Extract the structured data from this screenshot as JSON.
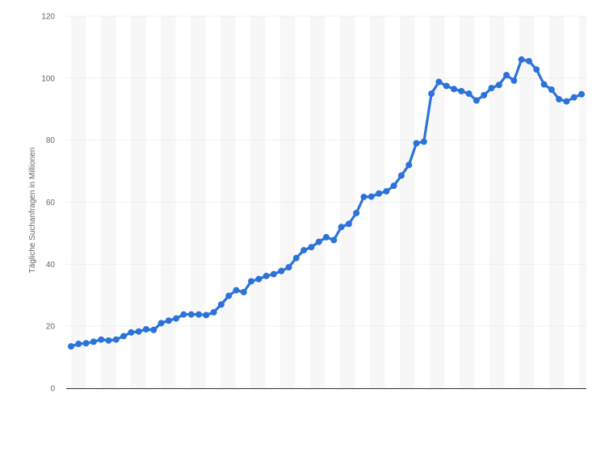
{
  "chart_data": {
    "type": "line",
    "title": "",
    "xlabel": "",
    "ylabel": "Tägliche Suchanfragen in Millionen",
    "ylim": [
      0,
      120
    ],
    "yticks": [
      0,
      20,
      40,
      60,
      80,
      100,
      120
    ],
    "grid": true,
    "legend": "none",
    "series": [
      {
        "color": "#2c73d9",
        "values": [
          13.5,
          14.3,
          14.5,
          15.0,
          15.7,
          15.4,
          15.7,
          16.8,
          18.0,
          18.3,
          19.0,
          18.8,
          21.0,
          21.8,
          22.5,
          23.8,
          23.8,
          23.8,
          23.6,
          24.5,
          27.0,
          29.8,
          31.6,
          31.0,
          34.5,
          35.2,
          36.2,
          36.8,
          37.8,
          39.0,
          42.0,
          44.5,
          45.5,
          47.2,
          48.7,
          47.8,
          52.0,
          53.0,
          56.5,
          61.7,
          61.8,
          62.8,
          63.5,
          65.3,
          68.6,
          72.0,
          79.0,
          79.5,
          95.0,
          98.8,
          97.5,
          96.5,
          95.8,
          95.0,
          92.8,
          94.5,
          96.8,
          97.8,
          101.0,
          99.2,
          106.0,
          105.5,
          102.8,
          98.0,
          96.3,
          93.2,
          92.5,
          93.8,
          94.8
        ]
      }
    ]
  }
}
